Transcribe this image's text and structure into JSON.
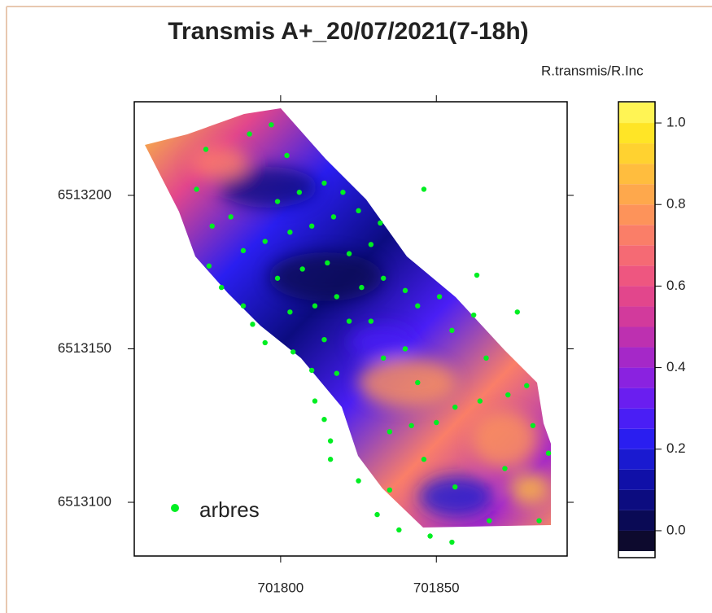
{
  "chart_data": {
    "type": "scatter",
    "title": "Transmis A+_20/07/2021(7-18h)",
    "xlim": [
      701753,
      701892
    ],
    "xticks": [
      701800,
      701850
    ],
    "ylim": [
      6513082.5,
      6513230.5
    ],
    "yticks": [
      6513100,
      6513150,
      6513200
    ],
    "legend": "bottom-left",
    "series": [
      {
        "name": "arbres",
        "color": "#00ee22",
        "x": [
          701797,
          701790,
          701776,
          701802,
          701773,
          701846,
          701814,
          701806,
          701799,
          701820,
          701784,
          701778,
          701817,
          701810,
          701803,
          701825,
          701832,
          701795,
          701788,
          701829,
          701822,
          701815,
          701807,
          701799,
          701777,
          701863,
          701781,
          701826,
          701833,
          701818,
          701811,
          701803,
          701788,
          701840,
          701851,
          701844,
          701876,
          701791,
          701822,
          701829,
          701862,
          701855,
          701814,
          701795,
          701804,
          701840,
          701833,
          701866,
          701810,
          701818,
          701844,
          701879,
          701811,
          701873,
          701864,
          701856,
          701814,
          701850,
          701842,
          701835,
          701881,
          701816,
          701886,
          701816,
          701846,
          701872,
          701825,
          701856,
          701835,
          701831,
          701867,
          701883,
          701838,
          701848,
          701855
        ],
        "values": [
          6513223,
          6513220,
          6513215,
          6513213,
          6513202,
          6513202,
          6513204,
          6513201,
          6513198,
          6513201,
          6513193,
          6513190,
          6513193,
          6513190,
          6513188,
          6513195,
          6513191,
          6513185,
          6513182,
          6513184,
          6513181,
          6513178,
          6513176,
          6513173,
          6513177,
          6513174,
          6513170,
          6513170,
          6513173,
          6513167,
          6513164,
          6513162,
          6513164,
          6513169,
          6513167,
          6513164,
          6513162,
          6513158,
          6513159,
          6513159,
          6513161,
          6513156,
          6513153,
          6513152,
          6513149,
          6513150,
          6513147,
          6513147,
          6513143,
          6513142,
          6513139,
          6513138,
          6513133,
          6513135,
          6513133,
          6513131,
          6513127,
          6513126,
          6513125,
          6513123,
          6513125,
          6513120,
          6513116,
          6513114,
          6513114,
          6513111,
          6513107,
          6513105,
          6513104,
          6513096,
          6513094,
          6513094,
          6513091,
          6513089,
          6513087
        ]
      }
    ],
    "colorbar": {
      "title": "R.transmis/R.Inc",
      "lim": [
        -0.066,
        1.052
      ],
      "ticks": [
        {
          "value": 0,
          "label": "0.0"
        },
        {
          "value": 0.2,
          "label": "0.2"
        },
        {
          "value": 0.4,
          "label": "0.4"
        },
        {
          "value": 0.6,
          "label": "0.6"
        },
        {
          "value": 0.8,
          "label": "0.8"
        },
        {
          "value": 1,
          "label": "1.0"
        }
      ],
      "breaks": [
        -0.05,
        0,
        0.05,
        0.1,
        0.15,
        0.2,
        0.25,
        0.3,
        0.35,
        0.4,
        0.45,
        0.5,
        0.55,
        0.6,
        0.65,
        0.7,
        0.75,
        0.8,
        0.85,
        0.9,
        0.95,
        1,
        1.05
      ],
      "colors": [
        "#0d0a2e",
        "#0a0a55",
        "#0c0c80",
        "#1010a8",
        "#1a1ad0",
        "#2a1ef0",
        "#4a1ef5",
        "#6a1ef0",
        "#8a22e0",
        "#a528c8",
        "#bd30b0",
        "#d23a9c",
        "#e2468c",
        "#ee5680",
        "#f56a74",
        "#fa7e68",
        "#fd935a",
        "#fea84c",
        "#ffbd3e",
        "#ffd230",
        "#ffe526",
        "#fff454"
      ]
    }
  }
}
